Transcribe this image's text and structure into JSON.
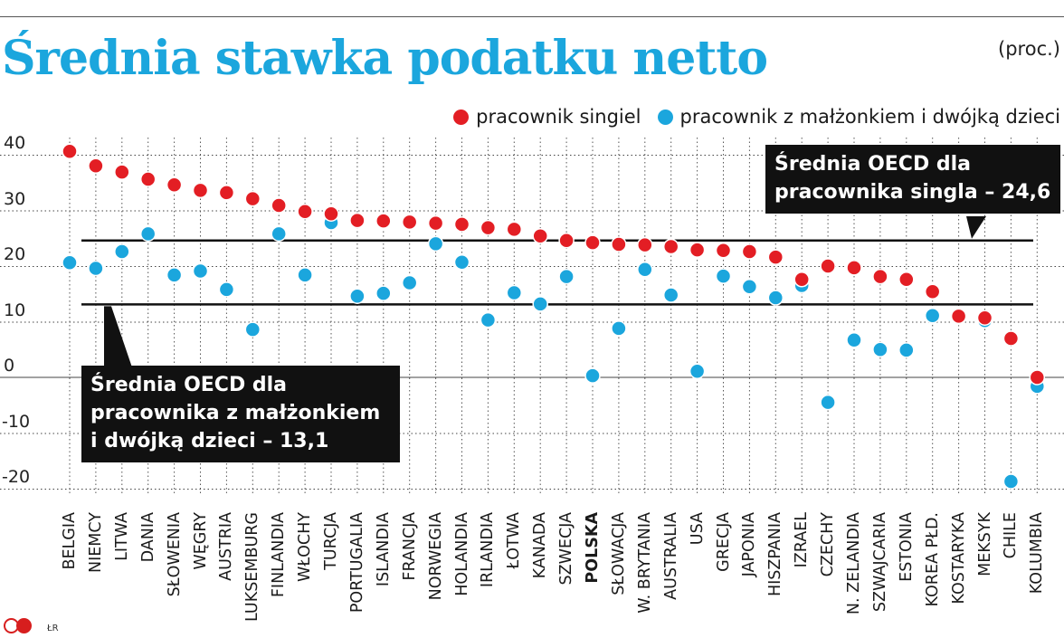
{
  "title": "Średnia stawka podatku netto",
  "unit": "(proc.)",
  "credit": "ŁR",
  "colors": {
    "single": "#e31e24",
    "family": "#1ba6dd",
    "title": "#1ba6dd"
  },
  "callouts": {
    "single": {
      "line1": "Średnia OECD dla",
      "line2": "pracownika singla – 24,6"
    },
    "family": {
      "line1": "Średnia OECD dla",
      "line2": "pracownika z małżonkiem",
      "line3": "i dwójką dzieci – 13,1"
    }
  },
  "chart_data": {
    "type": "scatter",
    "title": "Średnia stawka podatku netto",
    "ylabel": "(proc.)",
    "ylim": [
      -20,
      40
    ],
    "yticks": [
      "40",
      "30",
      "20",
      "10",
      "0",
      "-10",
      "-20"
    ],
    "legend": "top-right",
    "grid": true,
    "categories": [
      "BELGIA",
      "NIEMCY",
      "LITWA",
      "DANIA",
      "SŁOWENIA",
      "WĘGRY",
      "AUSTRIA",
      "LUKSEMBURG",
      "FINLANDIA",
      "WŁOCHY",
      "TURCJA",
      "PORTUGALIA",
      "ISLANDIA",
      "FRANCJA",
      "NORWEGIA",
      "HOLANDIA",
      "IRLANDIA",
      "ŁOTWA",
      "KANADA",
      "SZWECJA",
      "POLSKA",
      "SŁOWACJA",
      "W. BRYTANIA",
      "AUSTRALIA",
      "USA",
      "GRECJA",
      "JAPONIA",
      "HISZPANIA",
      "IZRAEL",
      "CZECHY",
      "N. ZELANDIA",
      "SZWAJCARIA",
      "ESTONIA",
      "KOREA PŁD.",
      "KOSTARYKA",
      "MEKSYK",
      "CHILE",
      "KOLUMBIA"
    ],
    "highlight": "POLSKA",
    "series": [
      {
        "name": "pracownik singiel",
        "values": [
          40.6,
          38.0,
          36.9,
          35.6,
          34.6,
          33.6,
          33.2,
          32.1,
          30.9,
          29.8,
          29.4,
          28.2,
          28.1,
          27.9,
          27.7,
          27.5,
          26.9,
          26.6,
          25.4,
          24.6,
          24.2,
          23.9,
          23.8,
          23.5,
          22.9,
          22.8,
          22.6,
          21.6,
          17.6,
          20.0,
          19.7,
          18.1,
          17.6,
          15.4,
          11.0,
          10.7,
          7.0,
          0.0
        ]
      },
      {
        "name": "pracownik z małżonkiem i dwójką dzieci",
        "values": [
          20.6,
          19.6,
          22.6,
          25.8,
          18.4,
          19.1,
          15.8,
          8.6,
          25.8,
          18.4,
          27.8,
          14.6,
          15.1,
          17.0,
          24.0,
          20.7,
          10.3,
          15.2,
          13.2,
          18.1,
          0.3,
          8.8,
          19.4,
          14.8,
          1.1,
          18.2,
          16.3,
          14.3,
          16.5,
          -4.5,
          6.7,
          5.0,
          4.9,
          11.1,
          10.8,
          10.2,
          -18.7,
          -1.6
        ]
      }
    ],
    "reference_lines": [
      {
        "label": "Średnia OECD dla pracownika singla – 24,6",
        "value": 24.6
      },
      {
        "label": "Średnia OECD dla pracownika z małżonkiem i dwójką dzieci – 13,1",
        "value": 13.1
      }
    ]
  }
}
